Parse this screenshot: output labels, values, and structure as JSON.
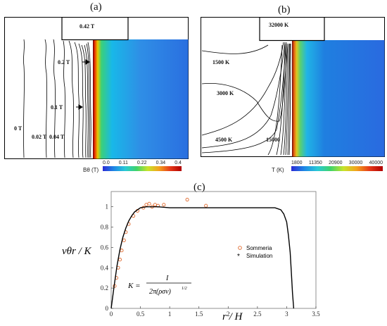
{
  "panel_a": {
    "label": "(a)",
    "contour_labels": [
      "0.42 T",
      "0.2 T",
      "0.1 T",
      "0 T",
      "0.02 T",
      "0.04 T"
    ],
    "colorbar": {
      "title": "Bθ (T)",
      "ticks": [
        "0.0",
        "0.11",
        "0.22",
        "0.34",
        "0.4"
      ]
    }
  },
  "panel_b": {
    "label": "(b)",
    "contour_labels": [
      "32000 K",
      "1500 K",
      "3000 K",
      "4500 K",
      "15000"
    ],
    "colorbar": {
      "title": "T (K)",
      "ticks": [
        "1800",
        "11350",
        "20900",
        "30000",
        "40000"
      ]
    }
  },
  "panel_c": {
    "label": "(c)",
    "ylabel": "vθr / K",
    "xlabel": "r / H",
    "formula_lhs": "K =",
    "formula_num": "I",
    "formula_den": "2π(ρσν)",
    "formula_exp": "1/2",
    "legend": [
      "Sommeria",
      "Simulation"
    ]
  },
  "chart_data": {
    "type": "scatter",
    "xticks": [
      "0",
      "0.5",
      "1",
      "1.5",
      "2",
      "2.5",
      "3",
      "3.5"
    ],
    "yticks": [
      "0",
      "0.2",
      "0.4",
      "0.6",
      "0.8",
      "1"
    ],
    "xlim": [
      0,
      3.5
    ],
    "ylim": [
      0,
      1.15
    ],
    "grid": false,
    "legend_position": "right",
    "series": [
      {
        "name": "Sommeria",
        "marker": "open-circle",
        "color": "#e0672a",
        "x": [
          0.06,
          0.09,
          0.12,
          0.15,
          0.18,
          0.22,
          0.25,
          0.3,
          0.38,
          0.45,
          0.55,
          0.6,
          0.65,
          0.7,
          0.75,
          0.8,
          0.9,
          1.3,
          1.62
        ],
        "y": [
          0.22,
          0.3,
          0.4,
          0.48,
          0.57,
          0.67,
          0.75,
          0.83,
          0.91,
          0.96,
          0.99,
          1.02,
          1.03,
          1.0,
          1.02,
          1.01,
          1.02,
          1.07,
          1.01
        ]
      },
      {
        "name": "Simulation",
        "marker": "line",
        "color": "#000000",
        "x": [
          0,
          0.05,
          0.1,
          0.15,
          0.2,
          0.25,
          0.3,
          0.35,
          0.4,
          0.5,
          0.6,
          0.7,
          0.8,
          1.0,
          1.5,
          2.0,
          2.5,
          2.8,
          2.9,
          2.95,
          3.0,
          3.03,
          3.06,
          3.08,
          3.1,
          3.12
        ],
        "y": [
          0,
          0.22,
          0.42,
          0.58,
          0.7,
          0.79,
          0.86,
          0.91,
          0.95,
          0.99,
          1.0,
          1.0,
          1.0,
          0.99,
          0.99,
          0.99,
          0.99,
          0.99,
          0.97,
          0.93,
          0.85,
          0.72,
          0.55,
          0.35,
          0.15,
          0.0
        ]
      }
    ]
  }
}
